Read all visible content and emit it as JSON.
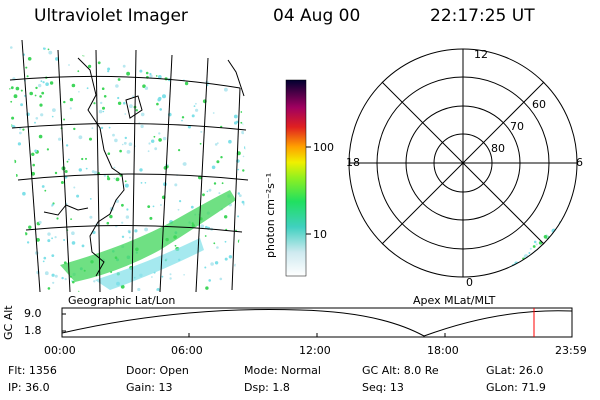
{
  "header": {
    "instrument": "Ultraviolet Imager",
    "date": "04 Aug 00",
    "time": "22:17:25 UT"
  },
  "map_panel": {
    "label": "Geographic Lat/Lon"
  },
  "polar_panel": {
    "label": "Apex MLat/MLT",
    "mlt_labels": {
      "top": "12",
      "left": "18",
      "right": "6",
      "bottom": "0"
    },
    "mlat_labels": [
      "60",
      "70",
      "80"
    ]
  },
  "colorbar": {
    "unit_label": "photon cm⁻²s⁻¹",
    "ticks": [
      "100",
      "10"
    ]
  },
  "altitude_plot": {
    "ylabel": "GC Alt",
    "yticks": [
      "9.0",
      "1.8"
    ],
    "xticks": [
      "00:00",
      "06:00",
      "12:00",
      "18:00",
      "23:59"
    ],
    "marker_color": "#ff0000"
  },
  "info": {
    "flt": "Flt: 1356",
    "ip": "IP: 36.0",
    "door": "Door: Open",
    "gain": "Gain: 13",
    "mode": "Mode: Normal",
    "dsp": "Dsp:    1.8",
    "gcalt": "GC Alt: 8.0 Re",
    "seq": "Seq: 13",
    "glat": "GLat:  26.0",
    "glon": "GLon:  71.9"
  },
  "colors": {
    "aurora_green": "#3fd65a",
    "aurora_cyan": "#7fe0e8",
    "marker_red": "#ff0000"
  }
}
